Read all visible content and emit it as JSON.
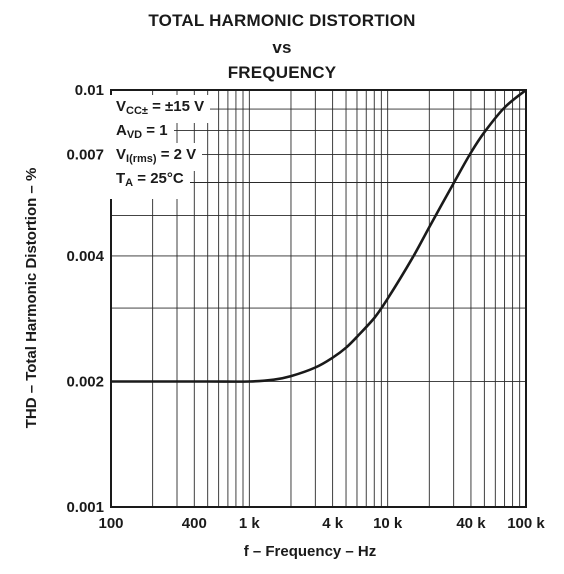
{
  "chart_data": {
    "type": "line",
    "title_lines": [
      "TOTAL HARMONIC DISTORTION",
      "vs",
      "FREQUENCY"
    ],
    "xlabel": "f – Frequency – Hz",
    "ylabel": "THD – Total Harmonic Distortion – %",
    "xscale": "log",
    "yscale": "log",
    "xlim": [
      100,
      100000
    ],
    "ylim": [
      0.001,
      0.01
    ],
    "grid": true,
    "x_ticks": [
      {
        "value": 100,
        "label": "100"
      },
      {
        "value": 400,
        "label": "400"
      },
      {
        "value": 1000,
        "label": "1 k"
      },
      {
        "value": 4000,
        "label": "4 k"
      },
      {
        "value": 10000,
        "label": "10 k"
      },
      {
        "value": 40000,
        "label": "40 k"
      },
      {
        "value": 100000,
        "label": "100 k"
      }
    ],
    "y_ticks": [
      {
        "value": 0.001,
        "label": "0.001"
      },
      {
        "value": 0.002,
        "label": "0.002"
      },
      {
        "value": 0.004,
        "label": "0.004"
      },
      {
        "value": 0.007,
        "label": "0.007"
      },
      {
        "value": 0.01,
        "label": "0.01"
      }
    ],
    "x_gridlines": [
      100,
      200,
      300,
      400,
      500,
      600,
      700,
      800,
      900,
      1000,
      2000,
      3000,
      4000,
      5000,
      6000,
      7000,
      8000,
      9000,
      10000,
      20000,
      30000,
      40000,
      50000,
      60000,
      70000,
      80000,
      90000,
      100000
    ],
    "y_gridlines": [
      0.001,
      0.002,
      0.003,
      0.004,
      0.005,
      0.006,
      0.007,
      0.008,
      0.009,
      0.01
    ],
    "series": [
      {
        "color": "#1a1a1a",
        "x": [
          100,
          200,
          500,
          1000,
          1500,
          2000,
          3000,
          4000,
          5000,
          6000,
          8000,
          10000,
          15000,
          20000,
          30000,
          40000,
          50000,
          70000,
          100000
        ],
        "y": [
          0.002,
          0.002,
          0.002,
          0.002,
          0.00202,
          0.00206,
          0.00216,
          0.00228,
          0.00241,
          0.00256,
          0.00284,
          0.00316,
          0.00394,
          0.00469,
          0.00598,
          0.00708,
          0.00792,
          0.00908,
          0.01
        ]
      }
    ]
  },
  "conditions": {
    "vcc": {
      "main": "V",
      "sub": "CC±",
      "rest": " = ±15 V"
    },
    "avd": {
      "main": "A",
      "sub": "VD",
      "rest": " = 1"
    },
    "vi": {
      "main": "V",
      "sub": "I(rms)",
      "rest": " = 2 V"
    },
    "ta": {
      "main": "T",
      "sub": "A",
      "rest": " = 25°C"
    }
  }
}
